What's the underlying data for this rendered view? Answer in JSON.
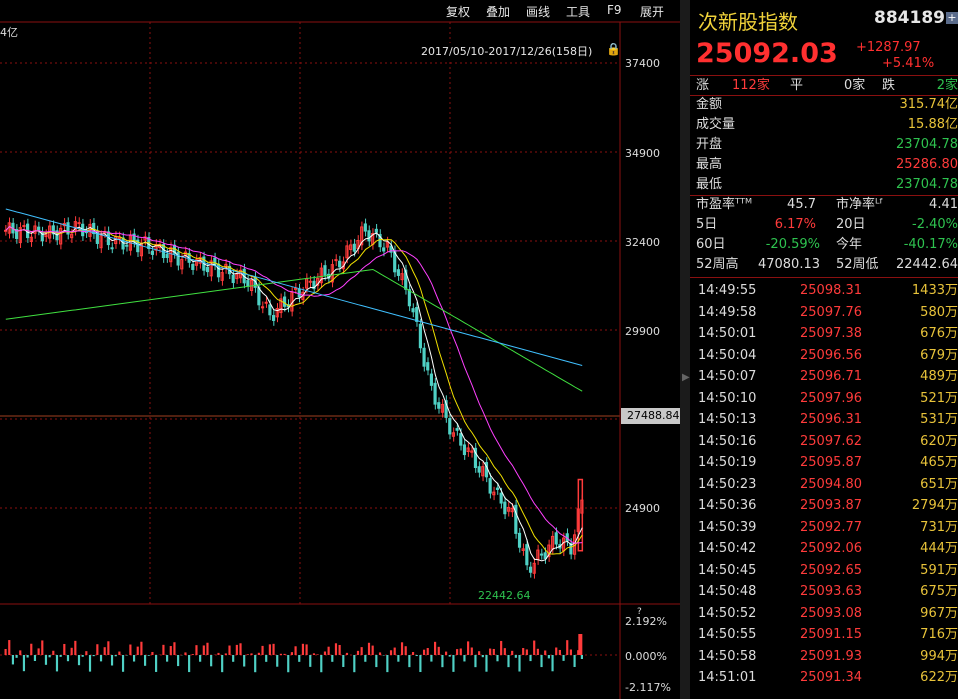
{
  "toolbar": {
    "items": [
      "复权",
      "叠加",
      "画线",
      "工具",
      "F9",
      "展开"
    ]
  },
  "main_chart": {
    "amount_fragment": "4亿",
    "date_range": "2017/05/10-2017/12/26(158日)",
    "y_axis_labels": [
      "37400",
      "34900",
      "32400",
      "29900",
      "24900"
    ],
    "current_price_flag": "27488.84",
    "low_annotation": "22442.64",
    "sub_axis_labels": [
      "2.192%",
      "0.000%",
      "-2.117%"
    ],
    "question_mark": "?"
  },
  "quote_panel": {
    "name": "次新股指数",
    "code": "884189",
    "plus_icon": "+",
    "price": "25092.03",
    "change": "+1287.97",
    "change_pct": "+5.41%",
    "breadth": {
      "up_label": "涨",
      "up_count": "112家",
      "flat_label": "平",
      "flat_count": "0家",
      "down_label": "跌",
      "down_count": "2家"
    },
    "stats": [
      {
        "label": "金额",
        "value": "315.74亿",
        "color": "yellow"
      },
      {
        "label": "成交量",
        "value": "15.88亿",
        "color": "yellow"
      },
      {
        "label": "开盘",
        "value": "23704.78",
        "color": "green"
      },
      {
        "label": "最高",
        "value": "25286.80",
        "color": "red"
      },
      {
        "label": "最低",
        "value": "23704.78",
        "color": "green"
      }
    ],
    "ratios": {
      "pe_label": "市盈率ᵀᵀᴹ",
      "pe_value": "45.7",
      "pb_label": "市净率ᴸᶠ",
      "pb_value": "4.41",
      "d5_label": "5日",
      "d5_value": "6.17%",
      "d20_label": "20日",
      "d20_value": "-2.40%",
      "d60_label": "60日",
      "d60_value": "-20.59%",
      "ytd_label": "今年",
      "ytd_value": "-40.17%",
      "w52h_label": "52周高",
      "w52h_value": "47080.13",
      "w52l_label": "52周低",
      "w52l_value": "22442.64"
    },
    "ticks": [
      {
        "time": "14:49:55",
        "price": "25098.31",
        "vol": "1433万"
      },
      {
        "time": "14:49:58",
        "price": "25097.76",
        "vol": "580万"
      },
      {
        "time": "14:50:01",
        "price": "25097.38",
        "vol": "676万"
      },
      {
        "time": "14:50:04",
        "price": "25096.56",
        "vol": "679万"
      },
      {
        "time": "14:50:07",
        "price": "25096.71",
        "vol": "489万"
      },
      {
        "time": "14:50:10",
        "price": "25097.96",
        "vol": "521万"
      },
      {
        "time": "14:50:13",
        "price": "25096.31",
        "vol": "531万"
      },
      {
        "time": "14:50:16",
        "price": "25097.62",
        "vol": "620万"
      },
      {
        "time": "14:50:19",
        "price": "25095.87",
        "vol": "465万"
      },
      {
        "time": "14:50:23",
        "price": "25094.80",
        "vol": "651万"
      },
      {
        "time": "14:50:36",
        "price": "25093.87",
        "vol": "2794万"
      },
      {
        "time": "14:50:39",
        "price": "25092.77",
        "vol": "731万"
      },
      {
        "time": "14:50:42",
        "price": "25092.06",
        "vol": "444万"
      },
      {
        "time": "14:50:45",
        "price": "25092.65",
        "vol": "591万"
      },
      {
        "time": "14:50:48",
        "price": "25093.63",
        "vol": "675万"
      },
      {
        "time": "14:50:52",
        "price": "25093.08",
        "vol": "967万"
      },
      {
        "time": "14:50:55",
        "price": "25091.15",
        "vol": "716万"
      },
      {
        "time": "14:50:58",
        "price": "25091.93",
        "vol": "994万"
      },
      {
        "time": "14:51:01",
        "price": "25091.34",
        "vol": "622万"
      }
    ]
  },
  "colors": {
    "up": "#ff3b3b",
    "down": "#2ec24f",
    "candle_down_fill": "#4fd1c5",
    "ma5": "#ffffff",
    "ma10": "#f0e000",
    "ma20": "#ff40ff",
    "ma60": "#40e040",
    "ma120": "#40c0ff",
    "grid": "#8a1010"
  }
}
